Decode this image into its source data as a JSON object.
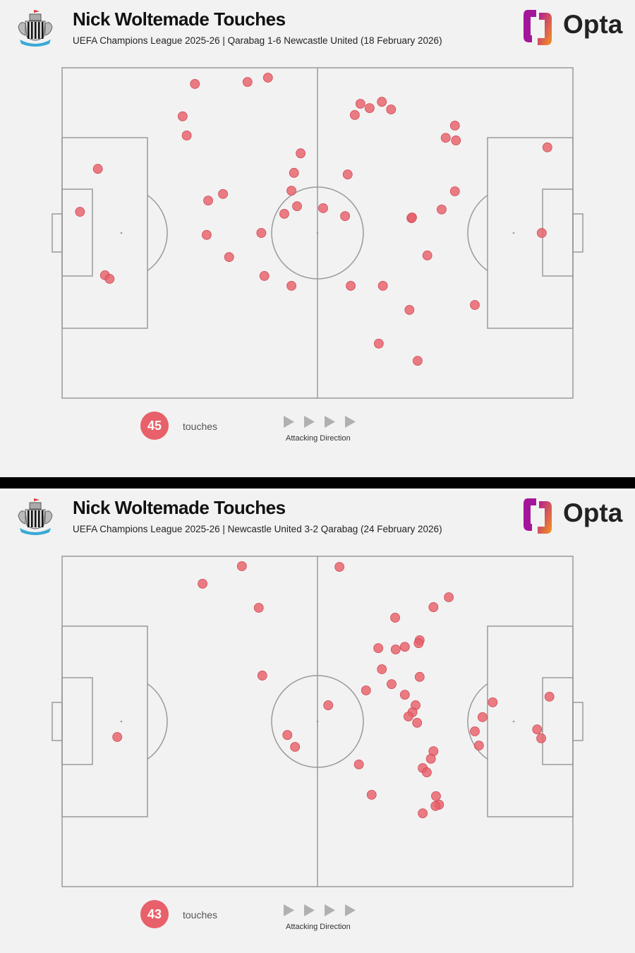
{
  "colors": {
    "touch": "#e8606a",
    "pitch_line": "#9a9a9a",
    "background": "#f2f2f2",
    "arrow": "#b0b0b0"
  },
  "icons": {
    "club_crest": "newcastle-united-crest-icon",
    "brand_logo": "opta-logo-icon",
    "direction": "play-arrow-icon"
  },
  "chart_data": [
    {
      "type": "scatter",
      "title": "Nick Woltemade Touches",
      "subtitle": "UEFA Champions League 2025-26 | Qarabag 1-6 Newcastle United (18 February 2026)",
      "brand": "Opta",
      "count": "45",
      "count_label": "touches",
      "direction_label": "Attacking Direction",
      "xlim": [
        0,
        100
      ],
      "ylim": [
        0,
        100
      ],
      "points": [
        [
          26.0,
          4.9
        ],
        [
          36.3,
          4.3
        ],
        [
          40.3,
          3.0
        ],
        [
          23.6,
          14.7
        ],
        [
          24.4,
          20.5
        ],
        [
          58.4,
          10.9
        ],
        [
          60.2,
          12.2
        ],
        [
          62.6,
          10.3
        ],
        [
          64.4,
          12.6
        ],
        [
          57.3,
          14.3
        ],
        [
          76.9,
          17.5
        ],
        [
          75.1,
          21.2
        ],
        [
          77.1,
          22.0
        ],
        [
          95.0,
          24.1
        ],
        [
          7.0,
          30.6
        ],
        [
          46.7,
          25.9
        ],
        [
          45.4,
          31.8
        ],
        [
          55.9,
          32.3
        ],
        [
          44.9,
          37.2
        ],
        [
          76.9,
          37.4
        ],
        [
          31.5,
          38.2
        ],
        [
          28.6,
          40.2
        ],
        [
          3.5,
          43.6
        ],
        [
          46.0,
          41.9
        ],
        [
          43.5,
          44.2
        ],
        [
          51.1,
          42.5
        ],
        [
          55.4,
          44.9
        ],
        [
          68.4,
          45.5
        ],
        [
          68.5,
          45.3
        ],
        [
          74.3,
          42.9
        ],
        [
          28.3,
          50.6
        ],
        [
          39.0,
          50.0
        ],
        [
          93.9,
          50.0
        ],
        [
          32.7,
          57.3
        ],
        [
          71.5,
          56.8
        ],
        [
          8.4,
          62.8
        ],
        [
          9.3,
          63.9
        ],
        [
          39.6,
          63.0
        ],
        [
          44.9,
          66.0
        ],
        [
          56.5,
          66.0
        ],
        [
          62.8,
          66.0
        ],
        [
          68.0,
          73.3
        ],
        [
          80.8,
          71.8
        ],
        [
          62.0,
          83.5
        ],
        [
          69.6,
          88.7
        ]
      ]
    },
    {
      "type": "scatter",
      "title": "Nick Woltemade Touches",
      "subtitle": "UEFA Champions League 2025-26 | Newcastle United 3-2 Qarabag (24 February 2026)",
      "brand": "Opta",
      "count": "43",
      "count_label": "touches",
      "direction_label": "Attacking Direction",
      "xlim": [
        0,
        100
      ],
      "ylim": [
        0,
        100
      ],
      "points": [
        [
          35.2,
          3.0
        ],
        [
          54.3,
          3.2
        ],
        [
          27.5,
          8.3
        ],
        [
          75.7,
          12.4
        ],
        [
          72.7,
          15.4
        ],
        [
          38.5,
          15.6
        ],
        [
          65.2,
          18.6
        ],
        [
          70.0,
          25.4
        ],
        [
          69.8,
          26.3
        ],
        [
          67.1,
          27.4
        ],
        [
          65.3,
          28.2
        ],
        [
          61.9,
          27.8
        ],
        [
          62.6,
          34.2
        ],
        [
          39.2,
          36.1
        ],
        [
          70.0,
          36.5
        ],
        [
          59.5,
          40.6
        ],
        [
          64.5,
          38.7
        ],
        [
          67.1,
          41.9
        ],
        [
          95.4,
          42.5
        ],
        [
          84.3,
          44.2
        ],
        [
          69.2,
          45.1
        ],
        [
          52.1,
          45.1
        ],
        [
          68.6,
          47.2
        ],
        [
          67.8,
          48.5
        ],
        [
          82.3,
          48.7
        ],
        [
          69.5,
          50.4
        ],
        [
          80.8,
          53.0
        ],
        [
          93.0,
          52.4
        ],
        [
          10.8,
          54.7
        ],
        [
          93.8,
          55.1
        ],
        [
          44.1,
          54.1
        ],
        [
          81.6,
          57.3
        ],
        [
          45.6,
          57.7
        ],
        [
          72.7,
          59.0
        ],
        [
          72.2,
          61.3
        ],
        [
          58.1,
          63.0
        ],
        [
          70.6,
          64.1
        ],
        [
          71.4,
          65.4
        ],
        [
          60.6,
          72.2
        ],
        [
          73.2,
          72.6
        ],
        [
          73.8,
          75.2
        ],
        [
          73.1,
          75.6
        ],
        [
          70.6,
          77.8
        ]
      ]
    }
  ]
}
